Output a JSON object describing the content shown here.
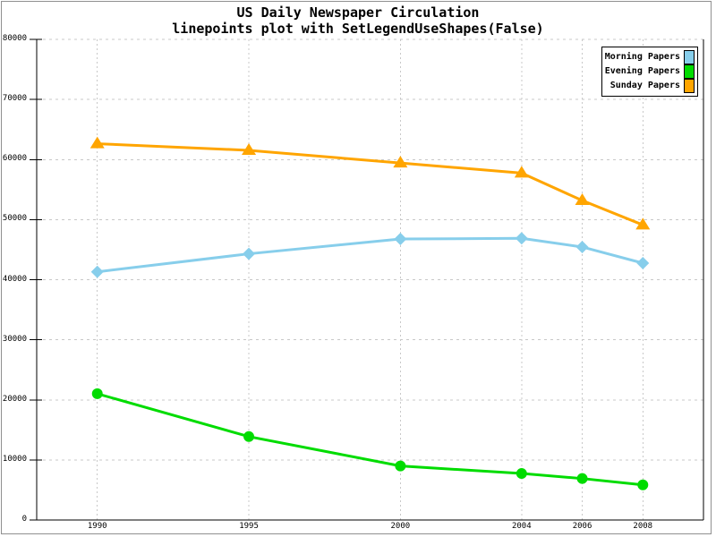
{
  "window": {
    "background": "#FFFFFF",
    "frame_color": "#909090"
  },
  "header": {
    "title": "US Daily Newspaper Circulation",
    "subtitle": "linepoints plot with SetLegendUseShapes(False)"
  },
  "chart_data": {
    "type": "line",
    "style": "linepoints",
    "title": "US Daily Newspaper Circulation",
    "subtitle": "linepoints plot with SetLegendUseShapes(False)",
    "xlabel": "",
    "ylabel": "",
    "x": [
      1990,
      1995,
      2000,
      2004,
      2006,
      2008
    ],
    "series": [
      {
        "name": "Morning Papers",
        "color": "#87CEEB",
        "marker": "diamond",
        "values": [
          41311,
          44310,
          46772,
          46887,
          45441,
          42757
        ]
      },
      {
        "name": "Evening Papers",
        "color": "#00DC00",
        "marker": "circle",
        "values": [
          21017,
          13883,
          9000,
          7738,
          6900,
          5840
        ]
      },
      {
        "name": "Sunday Papers",
        "color": "#FFA500",
        "marker": "triangle-up",
        "values": [
          62634,
          61529,
          59421,
          57754,
          53179,
          49115
        ]
      }
    ],
    "xlim": [
      1988,
      2010
    ],
    "ylim": [
      0,
      80000
    ],
    "x_ticks": [
      1990,
      1995,
      2000,
      2004,
      2006,
      2008
    ],
    "y_ticks": [
      0,
      10000,
      20000,
      30000,
      40000,
      50000,
      60000,
      70000,
      80000
    ],
    "grid": true,
    "grid_style": "dashed",
    "legend_position": "top-right"
  },
  "colors": {
    "grid": "#C8C8C8",
    "axis": "#000000",
    "legend_border": "#000000"
  }
}
